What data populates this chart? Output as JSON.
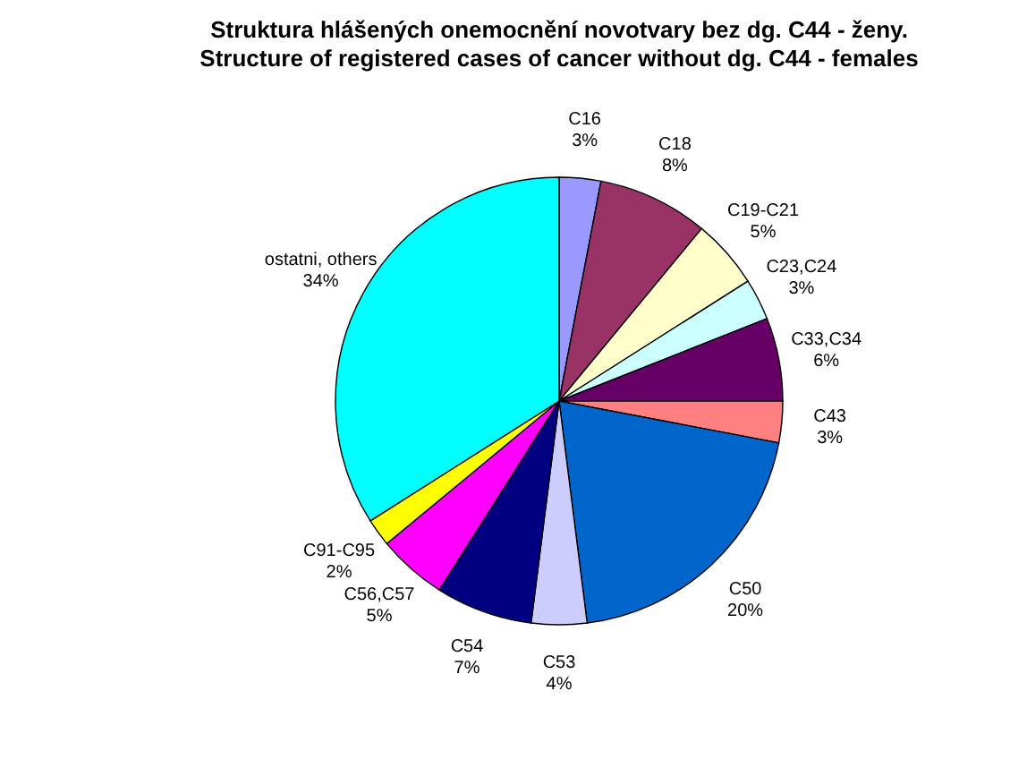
{
  "chart_data": {
    "type": "pie",
    "title": "Struktura hlášených onemocnění novotvary bez dg. C44 - ženy.",
    "subtitle": "Structure of registered cases of cancer without dg. C44 - females",
    "categories": [
      "C16",
      "C18",
      "C19-C21",
      "C23,C24",
      "C33,C34",
      "C43",
      "C50",
      "C53",
      "C54",
      "C56,C57",
      "C91-C95",
      "ostatni, others"
    ],
    "values": [
      3,
      8,
      5,
      3,
      6,
      3,
      20,
      4,
      7,
      5,
      2,
      34
    ],
    "value_labels": [
      "3%",
      "8%",
      "5%",
      "3%",
      "6%",
      "3%",
      "20%",
      "4%",
      "7%",
      "5%",
      "2%",
      "34%"
    ],
    "colors": [
      "#9999ff",
      "#993366",
      "#ffffcc",
      "#ccffff",
      "#660066",
      "#ff8080",
      "#0066cc",
      "#ccccff",
      "#000080",
      "#ff00ff",
      "#ffff00",
      "#00ffff"
    ],
    "legend": false
  }
}
